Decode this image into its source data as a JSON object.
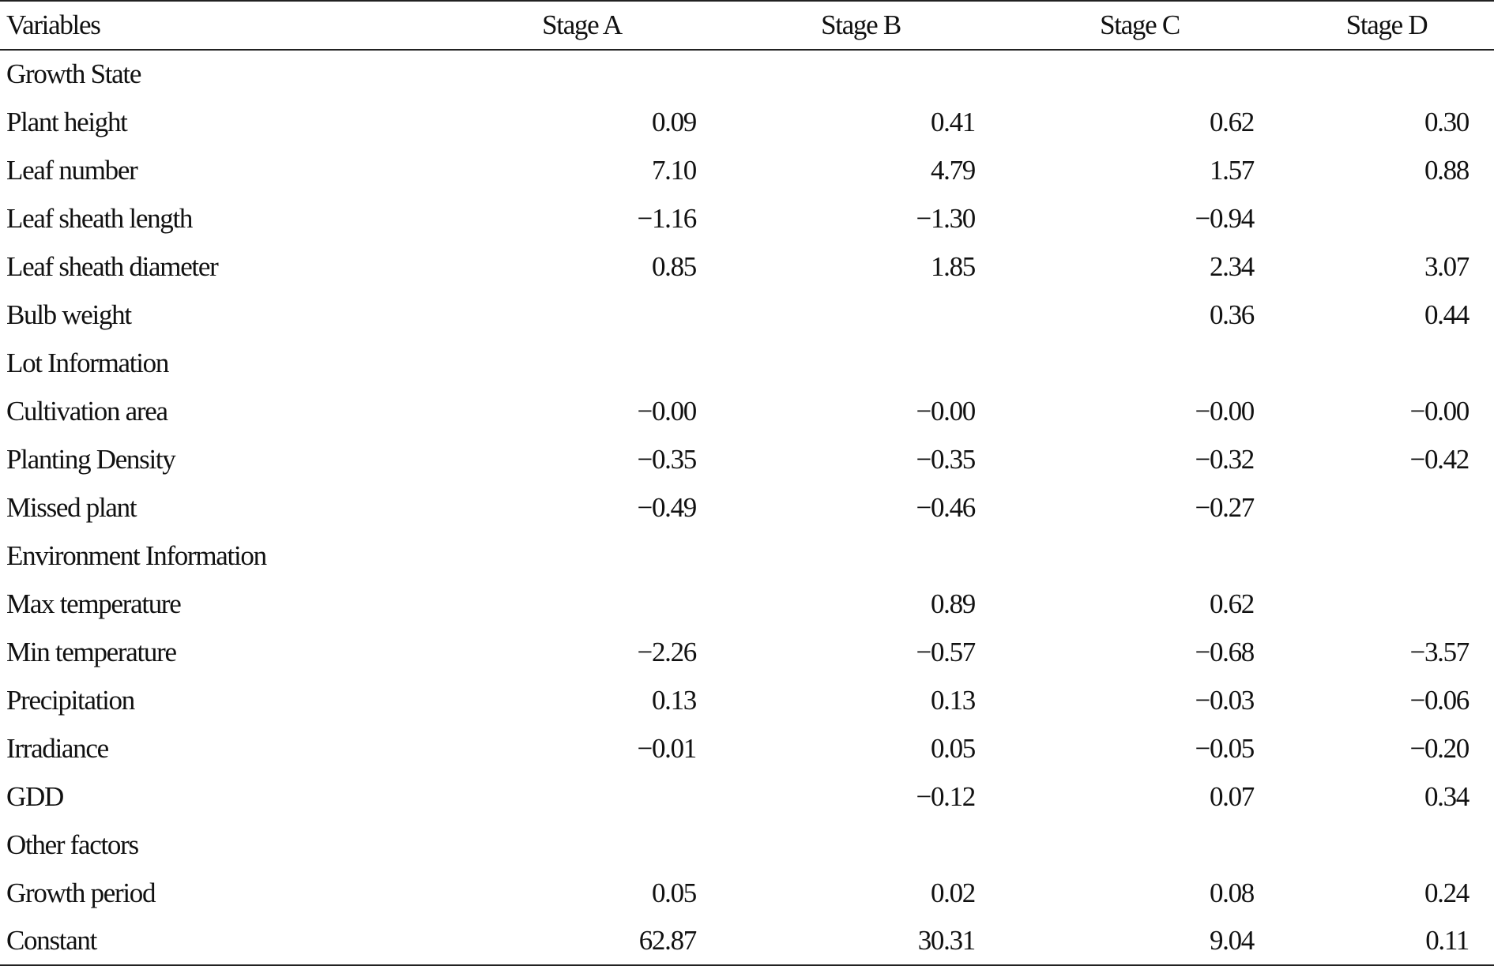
{
  "table": {
    "headers": [
      "Variables",
      "Stage A",
      "Stage B",
      "Stage C",
      "Stage D"
    ],
    "rows": [
      {
        "label": "Growth State",
        "values": [
          "",
          "",
          "",
          ""
        ]
      },
      {
        "label": "Plant height",
        "values": [
          "0.09",
          "0.41",
          "0.62",
          "0.30"
        ]
      },
      {
        "label": "Leaf number",
        "values": [
          "7.10",
          "4.79",
          "1.57",
          "0.88"
        ]
      },
      {
        "label": "Leaf sheath length",
        "values": [
          "−1.16",
          "−1.30",
          "−0.94",
          ""
        ]
      },
      {
        "label": "Leaf sheath diameter",
        "values": [
          "0.85",
          "1.85",
          "2.34",
          "3.07"
        ]
      },
      {
        "label": "Bulb weight",
        "values": [
          "",
          "",
          "0.36",
          "0.44"
        ]
      },
      {
        "label": "Lot Information",
        "values": [
          "",
          "",
          "",
          ""
        ]
      },
      {
        "label": "Cultivation area",
        "values": [
          "−0.00",
          "−0.00",
          "−0.00",
          "−0.00"
        ]
      },
      {
        "label": "Planting Density",
        "values": [
          "−0.35",
          "−0.35",
          "−0.32",
          "−0.42"
        ]
      },
      {
        "label": "Missed plant",
        "values": [
          "−0.49",
          "−0.46",
          "−0.27",
          ""
        ]
      },
      {
        "label": "Environment Information",
        "values": [
          "",
          "",
          "",
          ""
        ]
      },
      {
        "label": "Max temperature",
        "values": [
          "",
          "0.89",
          "0.62",
          ""
        ]
      },
      {
        "label": "Min temperature",
        "values": [
          "−2.26",
          "−0.57",
          "−0.68",
          "−3.57"
        ]
      },
      {
        "label": "Precipitation",
        "values": [
          "0.13",
          "0.13",
          "−0.03",
          "−0.06"
        ]
      },
      {
        "label": "Irradiance",
        "values": [
          "−0.01",
          "0.05",
          "−0.05",
          "−0.20"
        ]
      },
      {
        "label": "GDD",
        "values": [
          "",
          "−0.12",
          "0.07",
          "0.34"
        ]
      },
      {
        "label": "Other factors",
        "values": [
          "",
          "",
          "",
          ""
        ]
      },
      {
        "label": "Growth period",
        "values": [
          "0.05",
          "0.02",
          "0.08",
          "0.24"
        ]
      },
      {
        "label": "Constant",
        "values": [
          "62.87",
          "30.31",
          "9.04",
          "0.11"
        ]
      }
    ]
  }
}
